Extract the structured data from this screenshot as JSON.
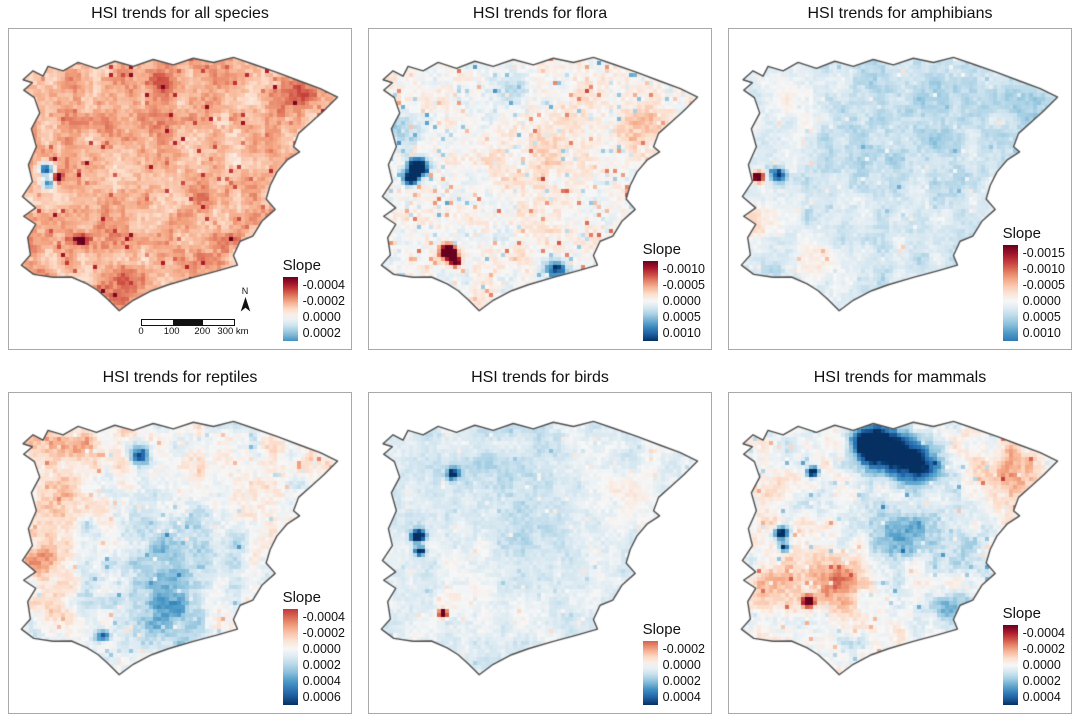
{
  "figure": {
    "background": "#ffffff",
    "outline_color": "#4f4f4f",
    "frame_color": "#a9a9a9",
    "palette_rdbu": [
      "#67001f",
      "#b2182b",
      "#d6604d",
      "#f4a582",
      "#fddbc7",
      "#f7f7f7",
      "#d1e5f0",
      "#92c5de",
      "#4393c3",
      "#2166ac",
      "#053061"
    ],
    "color_meaning": "dark red = most negative slope, white = 0, dark blue = most positive slope"
  },
  "north_arrow": {
    "label": "N"
  },
  "scalebar": {
    "tick_labels": [
      "0",
      "100",
      "200",
      "300 km"
    ],
    "segments": [
      "white",
      "black",
      "white"
    ]
  },
  "panels": [
    {
      "id": "all-species",
      "title": "HSI trends for all species",
      "legend_title": "Slope",
      "legend_ticks": [
        "-0.0004",
        "-0.0002",
        "0.0000",
        "0.0002"
      ],
      "tick_values": [
        -0.0004,
        -0.0002,
        0.0,
        0.0002
      ],
      "has_scalebar": true,
      "texture": {
        "seed": 11,
        "bias": -0.33,
        "amp1": 0.15,
        "amp2": 0.09,
        "grain": 0.08,
        "speckle_density": 0.05,
        "speckle_min": -0.5,
        "speckle_max": 0.05,
        "blobs": [
          [
            0.1,
            0.43,
            0.016,
            1.3
          ],
          [
            0.104,
            0.48,
            0.013,
            1.0
          ],
          [
            0.135,
            0.458,
            0.01,
            -0.9
          ],
          [
            0.205,
            0.67,
            0.012,
            -0.8
          ],
          [
            0.44,
            0.13,
            0.035,
            -0.22
          ],
          [
            0.87,
            0.18,
            0.03,
            -0.3
          ],
          [
            0.3,
            0.8,
            0.05,
            -0.15
          ]
        ]
      }
    },
    {
      "id": "flora",
      "title": "HSI trends for flora",
      "legend_title": "Slope",
      "legend_ticks": [
        "-0.0010",
        "-0.0005",
        "0.0000",
        "0.0005",
        "0.0010"
      ],
      "tick_values": [
        -0.001,
        -0.0005,
        0.0,
        0.0005,
        0.001
      ],
      "has_scalebar": false,
      "texture": {
        "seed": 22,
        "bias": -0.02,
        "amp1": 0.1,
        "amp2": 0.08,
        "grain": 0.09,
        "speckle_density": 0.1,
        "speckle_min": -0.5,
        "speckle_max": 0.5,
        "blobs": [
          [
            0.135,
            0.425,
            0.02,
            1.8
          ],
          [
            0.112,
            0.462,
            0.016,
            1.2
          ],
          [
            0.225,
            0.705,
            0.016,
            -2.0
          ],
          [
            0.247,
            0.738,
            0.012,
            -1.3
          ],
          [
            0.55,
            0.77,
            0.028,
            0.9
          ],
          [
            0.79,
            0.29,
            0.055,
            -0.3
          ],
          [
            0.42,
            0.165,
            0.045,
            0.35
          ],
          [
            0.085,
            0.3,
            0.05,
            0.3
          ],
          [
            0.5,
            0.38,
            0.12,
            -0.1
          ]
        ]
      }
    },
    {
      "id": "amphibians",
      "title": "HSI trends for amphibians",
      "legend_title": "Slope",
      "legend_ticks": [
        "-0.0015",
        "-0.0010",
        "-0.0005",
        "0.0000",
        "0.0005",
        "0.0010"
      ],
      "tick_values": [
        -0.0015,
        -0.001,
        -0.0005,
        0.0,
        0.0005,
        0.001
      ],
      "has_scalebar": false,
      "texture": {
        "seed": 33,
        "bias": 0.16,
        "amp1": 0.11,
        "amp2": 0.07,
        "grain": 0.06,
        "speckle_density": 0.04,
        "speckle_min": -0.33,
        "speckle_max": 0.18,
        "blobs": [
          [
            0.075,
            0.455,
            0.012,
            -1.7
          ],
          [
            0.135,
            0.452,
            0.018,
            0.9
          ],
          [
            0.05,
            0.6,
            0.06,
            -0.33
          ],
          [
            0.56,
            0.3,
            0.13,
            0.15
          ],
          [
            0.9,
            0.21,
            0.07,
            0.18
          ],
          [
            0.25,
            0.75,
            0.07,
            -0.22
          ],
          [
            0.12,
            0.2,
            0.08,
            -0.15
          ]
        ]
      }
    },
    {
      "id": "reptiles",
      "title": "HSI trends for reptiles",
      "legend_title": "Slope",
      "legend_ticks": [
        "-0.0004",
        "-0.0002",
        "0.0000",
        "0.0002",
        "0.0004",
        "0.0006"
      ],
      "tick_values": [
        -0.0004,
        -0.0002,
        0.0,
        0.0002,
        0.0004,
        0.0006
      ],
      "has_scalebar": false,
      "texture": {
        "seed": 44,
        "bias": 0.01,
        "amp1": 0.17,
        "amp2": 0.1,
        "grain": 0.08,
        "speckle_density": 0.05,
        "speckle_min": -0.35,
        "speckle_max": 0.35,
        "blobs": [
          [
            0.18,
            0.12,
            0.09,
            -0.3
          ],
          [
            0.38,
            0.17,
            0.022,
            0.9
          ],
          [
            0.45,
            0.53,
            0.13,
            0.32
          ],
          [
            0.085,
            0.5,
            0.055,
            -0.4
          ],
          [
            0.1,
            0.35,
            0.06,
            -0.3
          ],
          [
            0.62,
            0.3,
            0.1,
            -0.12
          ],
          [
            0.48,
            0.72,
            0.08,
            0.3
          ],
          [
            0.27,
            0.775,
            0.015,
            0.9
          ],
          [
            0.13,
            0.68,
            0.05,
            -0.25
          ]
        ]
      }
    },
    {
      "id": "birds",
      "title": "HSI trends for birds",
      "legend_title": "Slope",
      "legend_ticks": [
        "-0.0002",
        "0.0000",
        "0.0002",
        "0.0004"
      ],
      "tick_values": [
        -0.0002,
        0.0,
        0.0002,
        0.0004
      ],
      "has_scalebar": false,
      "texture": {
        "seed": 55,
        "bias": 0.11,
        "amp1": 0.1,
        "amp2": 0.06,
        "grain": 0.06,
        "speckle_density": 0.05,
        "speckle_min": -0.28,
        "speckle_max": 0.16,
        "blobs": [
          [
            0.135,
            0.44,
            0.014,
            1.6
          ],
          [
            0.14,
            0.49,
            0.011,
            1.3
          ],
          [
            0.24,
            0.23,
            0.012,
            1.2
          ],
          [
            0.21,
            0.7,
            0.01,
            -1.6
          ],
          [
            0.42,
            0.23,
            0.13,
            0.14
          ],
          [
            0.5,
            0.48,
            0.09,
            0.12
          ],
          [
            0.28,
            0.62,
            0.07,
            -0.15
          ],
          [
            0.76,
            0.28,
            0.08,
            -0.12
          ]
        ]
      }
    },
    {
      "id": "mammals",
      "title": "HSI trends for mammals",
      "legend_title": "Slope",
      "legend_ticks": [
        "-0.0004",
        "-0.0002",
        "0.0000",
        "0.0002",
        "0.0004"
      ],
      "tick_values": [
        -0.0004,
        -0.0002,
        0.0,
        0.0002,
        0.0004
      ],
      "has_scalebar": false,
      "texture": {
        "seed": 66,
        "bias": 0.0,
        "amp1": 0.16,
        "amp2": 0.1,
        "grain": 0.08,
        "speckle_density": 0.06,
        "speckle_min": -0.4,
        "speckle_max": 0.45,
        "blobs": [
          [
            0.46,
            0.15,
            0.055,
            1.3
          ],
          [
            0.555,
            0.205,
            0.045,
            0.95
          ],
          [
            0.395,
            0.125,
            0.03,
            1.1
          ],
          [
            0.24,
            0.225,
            0.011,
            1.5
          ],
          [
            0.5,
            0.43,
            0.09,
            0.4
          ],
          [
            0.145,
            0.43,
            0.016,
            1.2
          ],
          [
            0.155,
            0.478,
            0.012,
            1.0
          ],
          [
            0.225,
            0.66,
            0.012,
            -1.9
          ],
          [
            0.3,
            0.575,
            0.07,
            -0.4
          ],
          [
            0.86,
            0.26,
            0.09,
            -0.26
          ],
          [
            0.66,
            0.7,
            0.05,
            0.45
          ],
          [
            0.13,
            0.6,
            0.05,
            -0.28
          ],
          [
            0.7,
            0.4,
            0.09,
            0.15
          ]
        ]
      }
    }
  ],
  "chart_data": [
    {
      "type": "heatmap",
      "title": "HSI trends for all species",
      "region": "Iberian Peninsula",
      "variable": "Slope",
      "colorbar_ticks": [
        -0.0004,
        -0.0002,
        0.0,
        0.0002
      ],
      "palette": "RdBu diverging (red negative, blue positive)",
      "legend_position": "bottom-right",
      "extras": [
        "north arrow",
        "scale bar 0-300 km"
      ],
      "dominant_pattern": "Almost entirely negative slopes: pale-to-medium red across the whole peninsula with scattered dark-red cells and a few isolated blue cells in central-west Portugal."
    },
    {
      "type": "heatmap",
      "title": "HSI trends for flora",
      "region": "Iberian Peninsula",
      "variable": "Slope",
      "colorbar_ticks": [
        -0.001,
        -0.0005,
        0.0,
        0.0005,
        0.001
      ],
      "palette": "RdBu diverging (red negative, blue positive)",
      "legend_position": "bottom-right",
      "dominant_pattern": "Mostly near zero (white) with scattered weak red/blue cells; strong dark-blue cluster in central-west Portugal and strong dark-red cluster in south-west Spain; faint blue in south coast."
    },
    {
      "type": "heatmap",
      "title": "HSI trends for amphibians",
      "region": "Iberian Peninsula",
      "variable": "Slope",
      "colorbar_ticks": [
        -0.0015,
        -0.001,
        -0.0005,
        0.0,
        0.0005,
        0.001
      ],
      "palette": "RdBu diverging (red negative, blue positive)",
      "legend_position": "bottom-right",
      "dominant_pattern": "Weak positive (very pale blue) over most of the peninsula, weak negative along the western/south-western fringe; one dark-red cell beside a small blue cluster in central-west Portugal."
    },
    {
      "type": "heatmap",
      "title": "HSI trends for reptiles",
      "region": "Iberian Peninsula",
      "variable": "Slope",
      "colorbar_ticks": [
        -0.0004,
        -0.0002,
        0.0,
        0.0002,
        0.0004,
        0.0006
      ],
      "palette": "RdBu diverging (red negative, blue positive)",
      "legend_position": "bottom-right",
      "dominant_pattern": "Mixed: pale negative (orange) in the north-west and west Portugal, pale positive (blue) in north-centre and centre-south; dark-blue spots in the north and on the south coast."
    },
    {
      "type": "heatmap",
      "title": "HSI trends for birds",
      "region": "Iberian Peninsula",
      "variable": "Slope",
      "colorbar_ticks": [
        -0.0002,
        0.0,
        0.0002,
        0.0004
      ],
      "palette": "RdBu diverging (red negative, blue positive)",
      "legend_position": "bottom-right",
      "dominant_pattern": "Very weak positive (pale blue) nearly everywhere with sparse pale-orange speckles; dark-blue streak in central-west Portugal and one dark-red cell in the south-west."
    },
    {
      "type": "heatmap",
      "title": "HSI trends for mammals",
      "region": "Iberian Peninsula",
      "variable": "Slope",
      "colorbar_ticks": [
        -0.0004,
        -0.0002,
        0.0,
        0.0002,
        0.0004
      ],
      "palette": "RdBu diverging (red negative, blue positive)",
      "legend_position": "bottom-right",
      "dominant_pattern": "Mixed: strong dark-blue cluster in north-central Spain, blue streak in central-west Portugal, scattered orange patches in the south and north-east, one dark-red cell in the south-west."
    }
  ]
}
